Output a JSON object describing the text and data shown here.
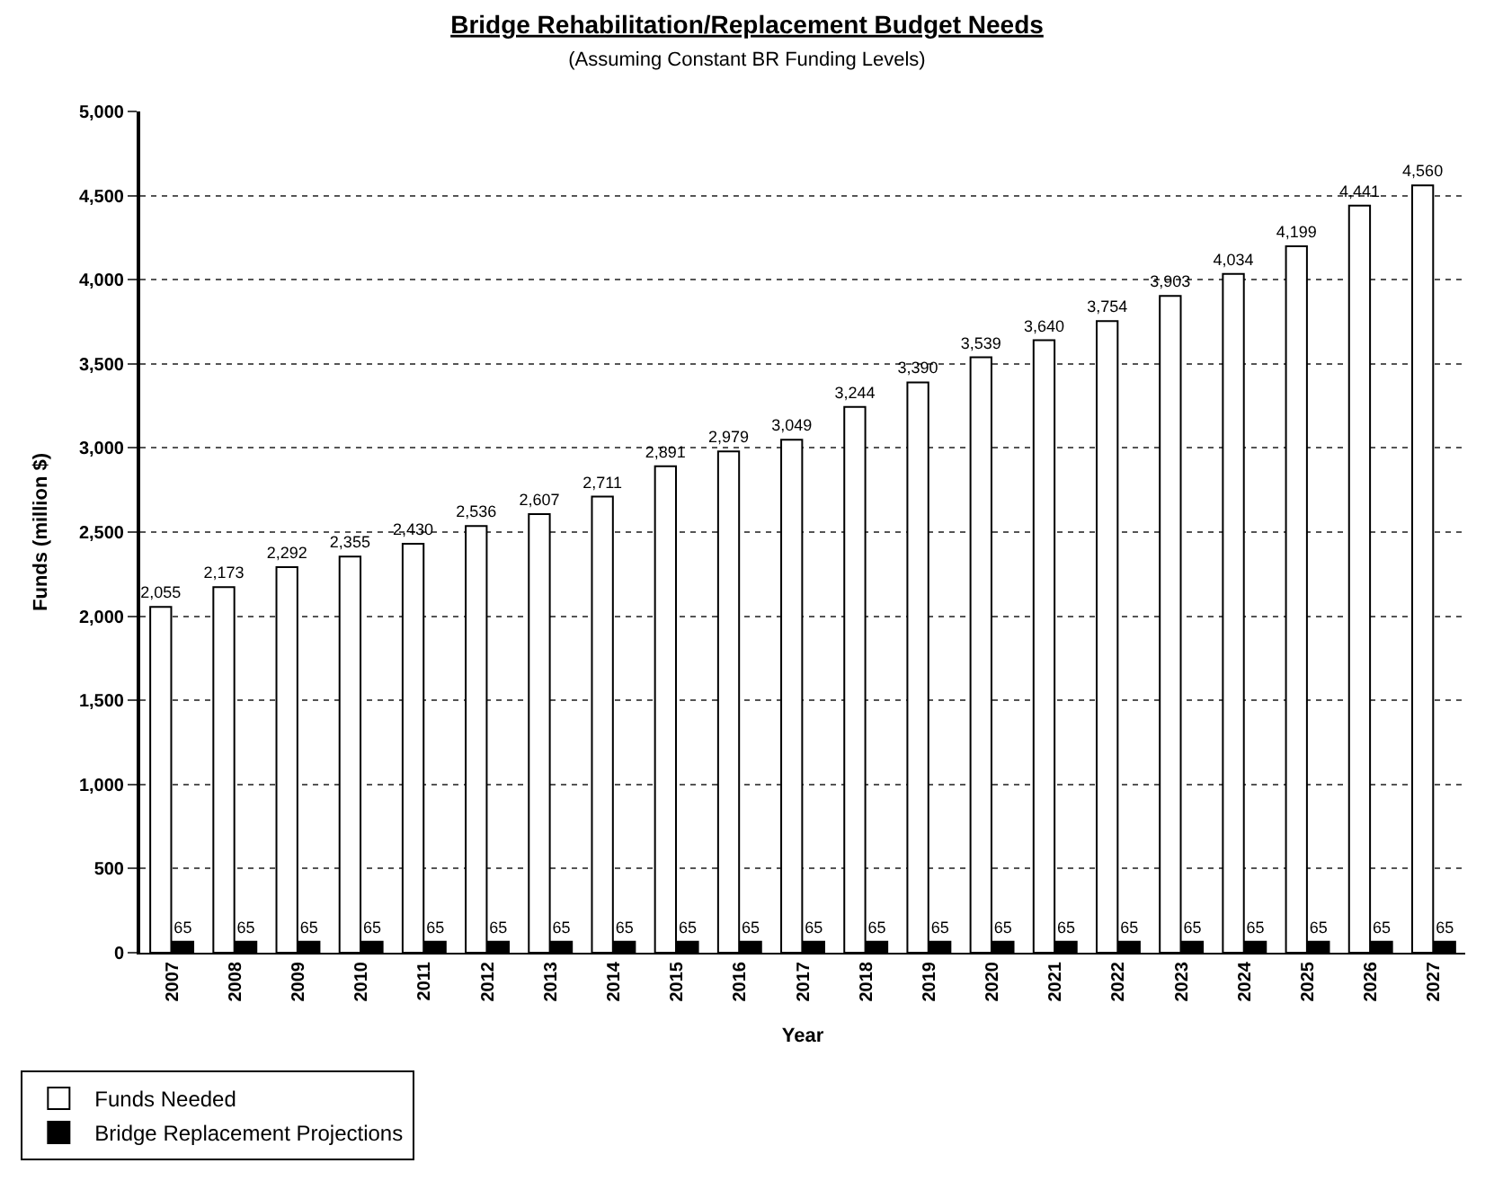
{
  "chart_data": {
    "type": "bar",
    "title": "Bridge Rehabilitation/Replacement Budget Needs",
    "subtitle": "(Assuming Constant BR Funding Levels)",
    "xlabel": "Year",
    "ylabel": "Funds (million $)",
    "categories": [
      "2007",
      "2008",
      "2009",
      "2010",
      "2011",
      "2012",
      "2013",
      "2014",
      "2015",
      "2016",
      "2017",
      "2018",
      "2019",
      "2020",
      "2021",
      "2022",
      "2023",
      "2024",
      "2025",
      "2026",
      "2027"
    ],
    "series": [
      {
        "name": "Funds Needed",
        "color": "#ffffff",
        "values": [
          2055,
          2173,
          2292,
          2355,
          2430,
          2536,
          2607,
          2711,
          2891,
          2979,
          3049,
          3244,
          3390,
          3539,
          3640,
          3754,
          3903,
          4034,
          4199,
          4441,
          4560
        ],
        "value_labels": [
          "2,055",
          "2,173",
          "2,292",
          "2,355",
          "2,430",
          "2,536",
          "2,607",
          "2,711",
          "2,891",
          "2,979",
          "3,049",
          "3,244",
          "3,390",
          "3,539",
          "3,640",
          "3,754",
          "3,903",
          "4,034",
          "4,199",
          "4,441",
          "4,560"
        ]
      },
      {
        "name": "Bridge Replacement Projections",
        "color": "#000000",
        "values": [
          65,
          65,
          65,
          65,
          65,
          65,
          65,
          65,
          65,
          65,
          65,
          65,
          65,
          65,
          65,
          65,
          65,
          65,
          65,
          65,
          65
        ],
        "value_labels": [
          "65",
          "65",
          "65",
          "65",
          "65",
          "65",
          "65",
          "65",
          "65",
          "65",
          "65",
          "65",
          "65",
          "65",
          "65",
          "65",
          "65",
          "65",
          "65",
          "65",
          "65"
        ]
      }
    ],
    "ylim": [
      0,
      5000
    ],
    "yticks": [
      0,
      {
        "value": 500,
        "label": "500"
      },
      {
        "value": 1000,
        "label": "1,000"
      },
      {
        "value": 1500,
        "label": "1,500"
      },
      {
        "value": 2000,
        "label": "2,000"
      },
      {
        "value": 2500,
        "label": "2,500"
      },
      {
        "value": 3000,
        "label": "3,000"
      },
      {
        "value": 3500,
        "label": "3,500"
      },
      {
        "value": 4000,
        "label": "4,000"
      },
      {
        "value": 4500,
        "label": "4,500"
      },
      {
        "value": 5000,
        "label": "5,000"
      }
    ],
    "grid": "y",
    "legend": "bottom left"
  }
}
